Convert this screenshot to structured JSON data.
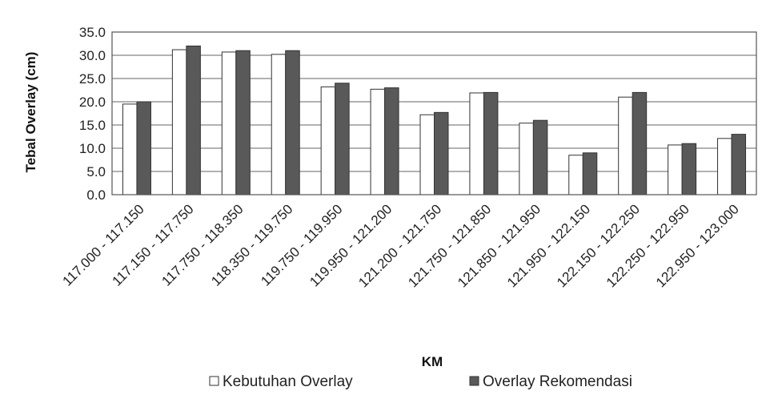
{
  "chart_data": {
    "type": "bar",
    "title": "",
    "xlabel": "KM",
    "ylabel": "Tebal Overlay (cm)",
    "ylim": [
      0,
      35
    ],
    "yticks": [
      0,
      5,
      10,
      15,
      20,
      25,
      30,
      35
    ],
    "ytick_labels": [
      "0.0",
      "5.0",
      "10.0",
      "15.0",
      "20.0",
      "25.0",
      "30.0",
      "35.0"
    ],
    "grid": true,
    "legend_position": "bottom",
    "categories": [
      "117.000 - 117.150",
      "117.150 - 117.750",
      "117.750 - 118.350",
      "118.350 - 119.750",
      "119.750 - 119.950",
      "119.950 - 121.200",
      "121.200 - 121.750",
      "121.750 - 121.850",
      "121.850 - 121.950",
      "121.950 - 122.150",
      "122.150 - 122.250",
      "122.250 - 122.950",
      "122.950 - 123.000"
    ],
    "series": [
      {
        "name": "Kebutuhan Overlay",
        "color": "#ffffff",
        "values": [
          19.5,
          31.2,
          30.7,
          30.2,
          23.2,
          22.7,
          17.2,
          21.9,
          15.4,
          8.5,
          21.0,
          10.7,
          12.1
        ]
      },
      {
        "name": "Overlay Rekomendasi",
        "color": "#595959",
        "values": [
          20.0,
          32.0,
          31.0,
          31.0,
          24.0,
          23.0,
          17.7,
          22.0,
          16.0,
          9.0,
          22.0,
          11.0,
          13.0
        ]
      }
    ]
  }
}
